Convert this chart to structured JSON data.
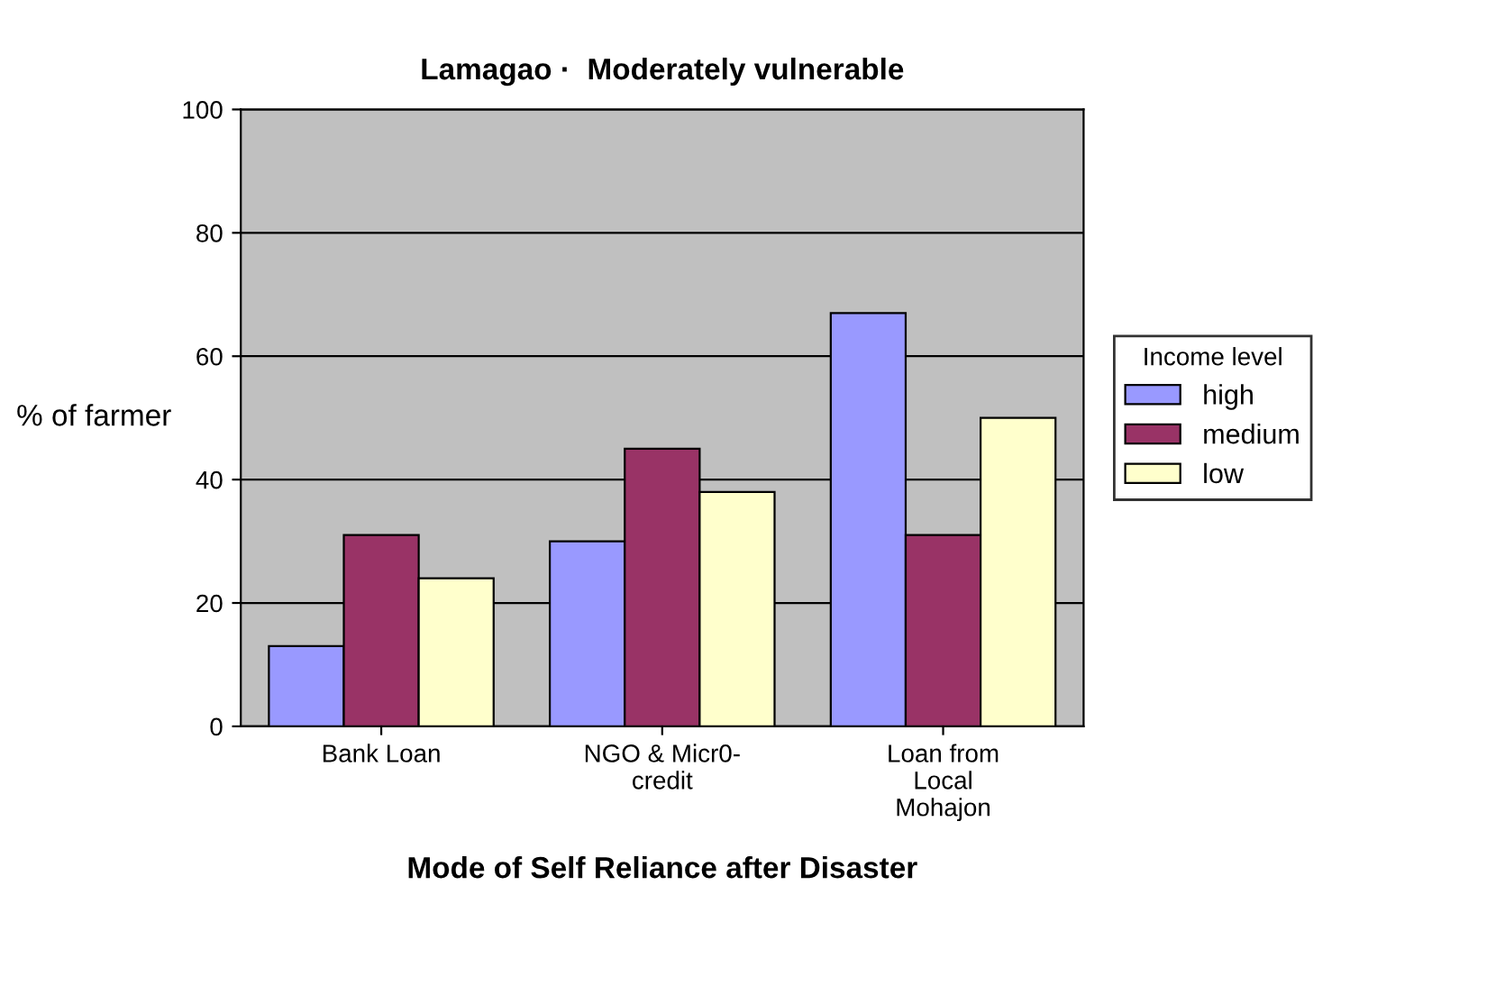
{
  "chart_data": {
    "type": "bar",
    "title": "Lamagao ·  Moderately vulnerable",
    "xlabel": "Mode of Self Reliance after Disaster",
    "ylabel": "% of farmer",
    "legend_title": "Income level",
    "categories": [
      "Bank Loan",
      "NGO & Micr0-\ncredit",
      "Loan from\nLocal\nMohajon"
    ],
    "series": [
      {
        "name": "high",
        "color": "#9999ff",
        "values": [
          13,
          30,
          67
        ]
      },
      {
        "name": "medium",
        "color": "#993366",
        "values": [
          31,
          45,
          31
        ]
      },
      {
        "name": "low",
        "color": "#ffffcc",
        "values": [
          24,
          38,
          50
        ]
      }
    ],
    "ylim": [
      0,
      100
    ],
    "yticks": [
      0,
      20,
      40,
      60,
      80,
      100
    ],
    "grid": "y",
    "legend": "right"
  }
}
